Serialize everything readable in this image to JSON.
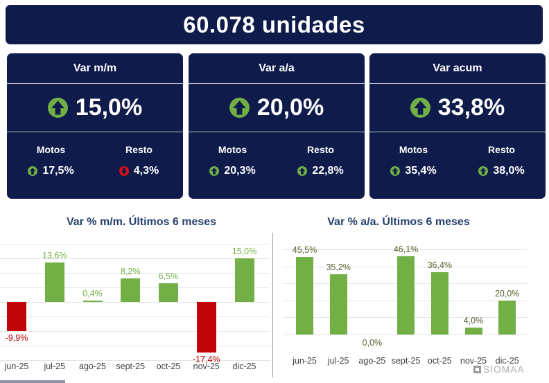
{
  "banner": {
    "title": "60.078 unidades"
  },
  "kpi_cards": [
    {
      "title": "Var m/m",
      "trend": "up",
      "value": "15,0%",
      "motos_label": "Motos",
      "motos_trend": "up",
      "motos_value": "17,5%",
      "resto_label": "Resto",
      "resto_trend": "down",
      "resto_value": "4,3%"
    },
    {
      "title": "Var a/a",
      "trend": "up",
      "value": "20,0%",
      "motos_label": "Motos",
      "motos_trend": "up",
      "motos_value": "20,3%",
      "resto_label": "Resto",
      "resto_trend": "up",
      "resto_value": "22,8%"
    },
    {
      "title": "Var acum",
      "trend": "up",
      "value": "33,8%",
      "motos_label": "Motos",
      "motos_trend": "up",
      "motos_value": "35,4%",
      "resto_label": "Resto",
      "resto_trend": "up",
      "resto_value": "38,0%"
    }
  ],
  "chart_data": [
    {
      "type": "bar",
      "title": "Var % m/m. Últimos 6 meses",
      "categories": [
        "jun-25",
        "jul-25",
        "ago-25",
        "sept-25",
        "oct-25",
        "nov-25",
        "dic-25"
      ],
      "values": [
        -9.9,
        13.6,
        0.4,
        8.2,
        6.5,
        -17.4,
        15.0
      ],
      "labels": [
        "-9,9%",
        "13,6%",
        "0,4%",
        "8,2%",
        "6,5%",
        "-17,4%",
        "15,0%"
      ],
      "xlabel": "",
      "ylabel": "",
      "ylim": [
        -20,
        20
      ],
      "grid_step": 5,
      "grid": true,
      "legend": "none",
      "bar_color_positive": "#72B046",
      "bar_color_negative": "#C10409",
      "label_color_positive": "#72B046",
      "label_color_negative": "#C10409"
    },
    {
      "type": "bar",
      "title": "Var % a/a. Últimos 6 meses",
      "categories": [
        "jun-25",
        "jul-25",
        "ago-25",
        "sept-25",
        "oct-25",
        "nov-25",
        "dic-25"
      ],
      "values": [
        45.5,
        35.2,
        0.0,
        46.1,
        36.4,
        4.0,
        20.0
      ],
      "labels": [
        "45,5%",
        "35,2%",
        "0,0%",
        "46,1%",
        "36,4%",
        "4,0%",
        "20,0%"
      ],
      "xlabel": "",
      "ylabel": "",
      "ylim": [
        0,
        50
      ],
      "grid_step": 10,
      "grid": true,
      "legend": "none",
      "bar_color_positive": "#72B046",
      "label_color_positive": "#55622F"
    }
  ],
  "watermark": {
    "text": "SIOMAA",
    "icon": "siomaa-logo-icon"
  },
  "colors": {
    "navy": "#0E1B4B",
    "green": "#72B046",
    "red_icon": "#DD1016",
    "red_bar": "#C10409",
    "chart_title": "#26406F",
    "gridline": "#E5E5E5",
    "axis_label": "#3F3F3F",
    "watermark_gray": "#ABABAB",
    "card_divider": "#C6C6CC"
  }
}
